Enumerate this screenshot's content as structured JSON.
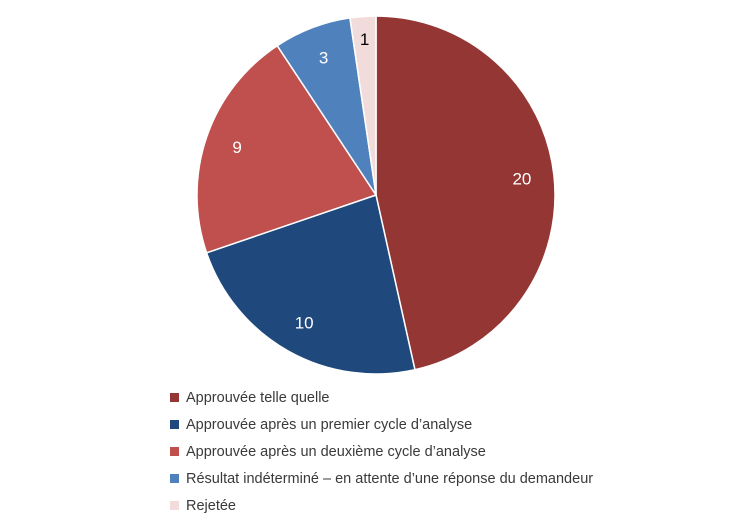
{
  "chart_data": {
    "type": "pie",
    "title": "",
    "start_angle_deg": 0,
    "direction": "clockwise",
    "legend_position": "bottom",
    "slices": [
      {
        "label": "Approuvée telle quelle",
        "value": 20,
        "color": "#943634",
        "label_color": "#ffffff"
      },
      {
        "label": "Approuvée après un premier cycle d’analyse",
        "value": 10,
        "color": "#1f497d",
        "label_color": "#ffffff"
      },
      {
        "label": "Approuvée après un deuxième cycle d’analyse",
        "value": 9,
        "color": "#c0504d",
        "label_color": "#ffffff"
      },
      {
        "label": "Résultat indéterminé – en attente d’une réponse du demandeur",
        "value": 3,
        "color": "#4f81bd",
        "label_color": "#ffffff"
      },
      {
        "label": "Rejetée",
        "value": 1,
        "color": "#f2dcdb",
        "label_color": "#000000"
      }
    ]
  }
}
